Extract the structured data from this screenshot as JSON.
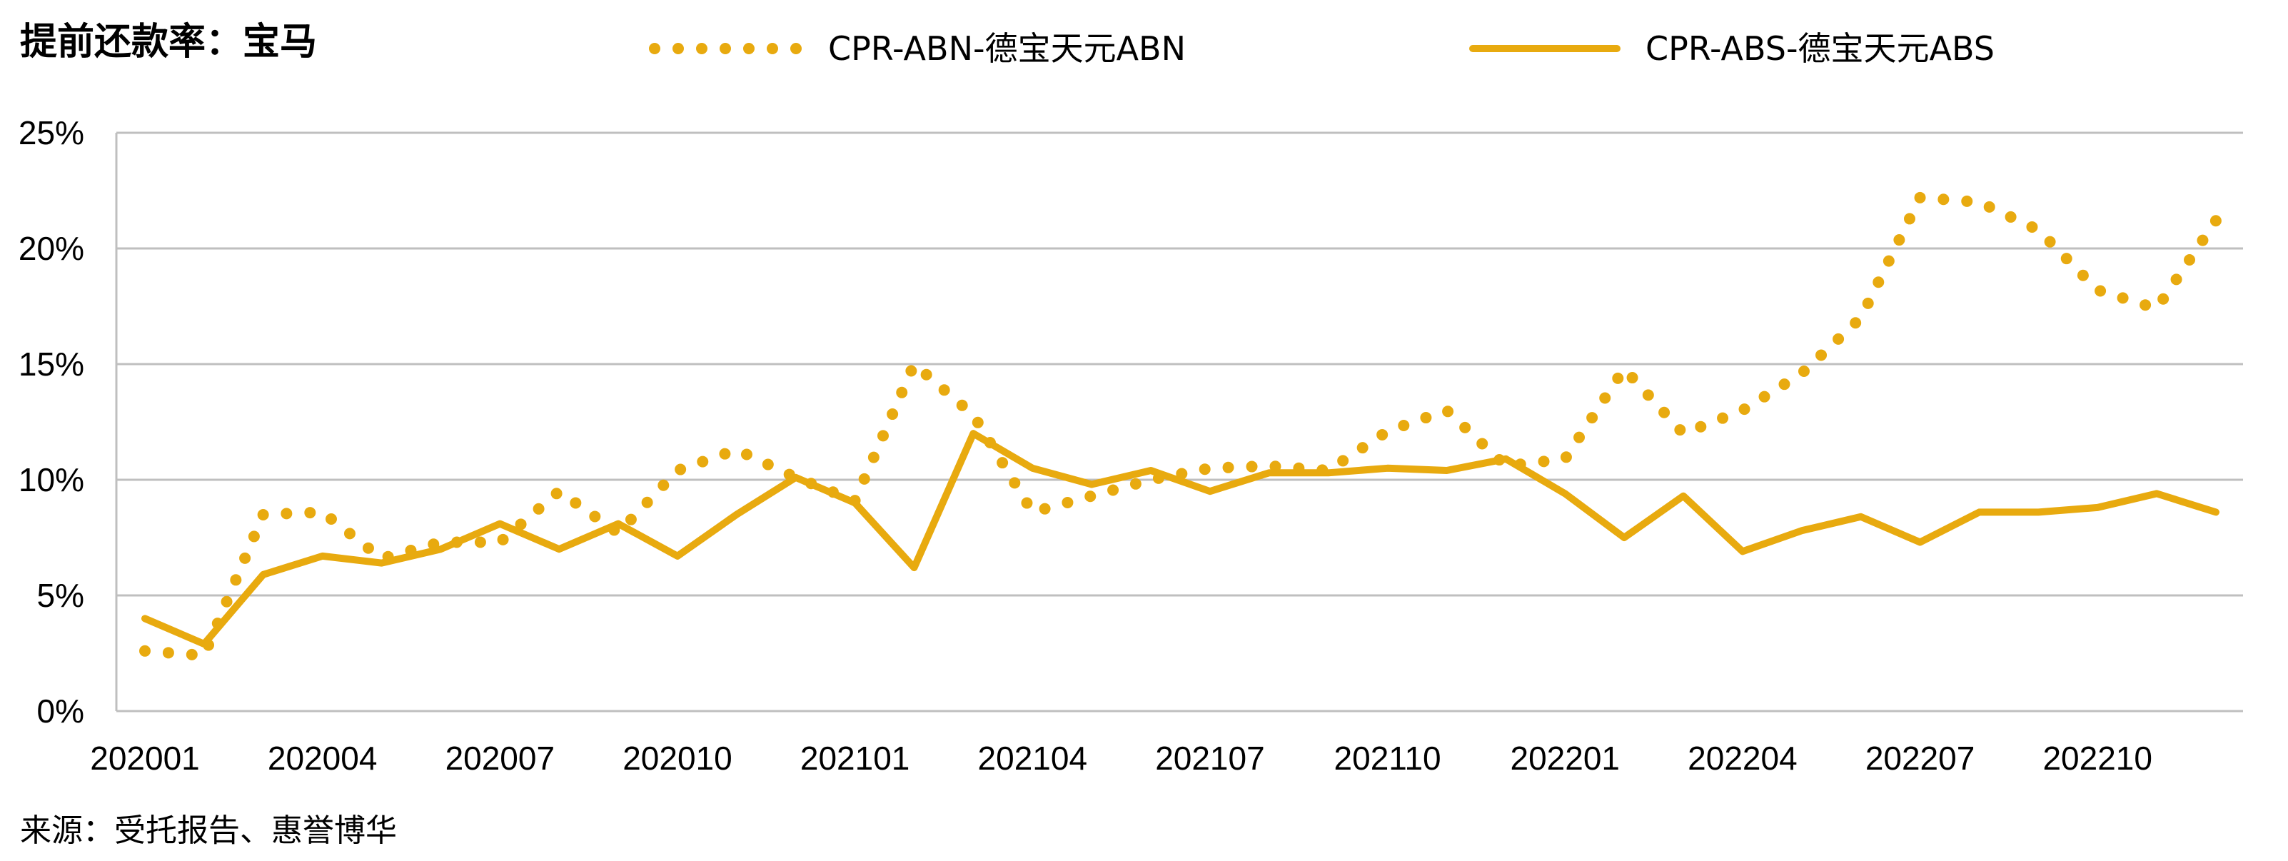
{
  "chart_data": {
    "type": "line",
    "title": "提前还款率：宝马",
    "source": "来源：受托报告、惠誉博华",
    "xlabel": "",
    "ylabel": "",
    "ylim": [
      0,
      25
    ],
    "ytick_values": [
      0,
      5,
      10,
      15,
      20,
      25
    ],
    "ytick_labels": [
      "0%",
      "5%",
      "10%",
      "15%",
      "20%",
      "25%"
    ],
    "grid": "horizontal",
    "legend_position": "top",
    "x": [
      "202001",
      "202002",
      "202003",
      "202004",
      "202005",
      "202006",
      "202007",
      "202008",
      "202009",
      "202010",
      "202011",
      "202012",
      "202101",
      "202102",
      "202103",
      "202104",
      "202105",
      "202106",
      "202107",
      "202108",
      "202109",
      "202110",
      "202111",
      "202112",
      "202201",
      "202202",
      "202203",
      "202204",
      "202205",
      "202206",
      "202207",
      "202208",
      "202209",
      "202210",
      "202211",
      "202212"
    ],
    "xtick_labels": [
      "202001",
      "202004",
      "202007",
      "202010",
      "202101",
      "202104",
      "202107",
      "202110",
      "202201",
      "202204",
      "202207",
      "202210"
    ],
    "colors": {
      "series": "#E8AA0F",
      "grid": "#BFBFBF",
      "axis": "#BFBFBF",
      "text": "#000000"
    },
    "series": [
      {
        "name": "CPR-ABN-德宝天元ABN",
        "style": "dotted",
        "values": [
          2.6,
          2.4,
          8.5,
          8.6,
          6.6,
          7.3,
          7.3,
          9.5,
          7.7,
          10.4,
          11.3,
          10.1,
          9.1,
          15.0,
          12.8,
          8.6,
          9.3,
          10.0,
          10.5,
          10.6,
          10.4,
          12.1,
          13.0,
          10.6,
          10.9,
          14.8,
          12.0,
          13.0,
          14.6,
          17.0,
          22.2,
          22.0,
          20.8,
          18.2,
          17.4,
          21.2
        ]
      },
      {
        "name": "CPR-ABS-德宝天元ABS",
        "style": "solid",
        "values": [
          4.0,
          2.9,
          5.9,
          6.7,
          6.4,
          7.0,
          8.1,
          7.0,
          8.1,
          6.7,
          8.5,
          10.1,
          9.0,
          6.2,
          12.0,
          10.5,
          9.8,
          10.4,
          9.5,
          10.3,
          10.3,
          10.5,
          10.4,
          10.9,
          9.4,
          7.5,
          9.3,
          6.9,
          7.8,
          8.4,
          7.3,
          8.6,
          8.6,
          8.8,
          9.4,
          8.6
        ]
      }
    ]
  }
}
